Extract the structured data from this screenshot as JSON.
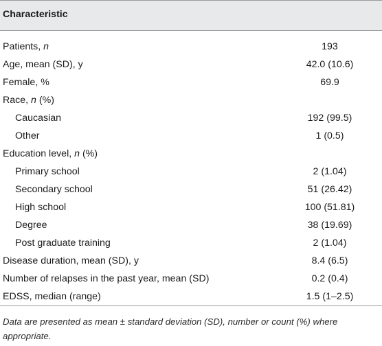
{
  "table": {
    "header": "Characteristic",
    "rows": [
      {
        "label_pre": "Patients, ",
        "label_em": "n",
        "label_post": "",
        "value": "193",
        "indent": false
      },
      {
        "label_pre": "Age, mean (SD), y",
        "label_em": "",
        "label_post": "",
        "value": "42.0 (10.6)",
        "indent": false
      },
      {
        "label_pre": "Female, %",
        "label_em": "",
        "label_post": "",
        "value": "69.9",
        "indent": false
      },
      {
        "label_pre": "Race, ",
        "label_em": "n",
        "label_post": " (%)",
        "value": "",
        "indent": false
      },
      {
        "label_pre": "Caucasian",
        "label_em": "",
        "label_post": "",
        "value": "192 (99.5)",
        "indent": true
      },
      {
        "label_pre": "Other",
        "label_em": "",
        "label_post": "",
        "value": "1 (0.5)",
        "indent": true
      },
      {
        "label_pre": "Education level, ",
        "label_em": "n",
        "label_post": " (%)",
        "value": "",
        "indent": false
      },
      {
        "label_pre": "Primary school",
        "label_em": "",
        "label_post": "",
        "value": "2 (1.04)",
        "indent": true
      },
      {
        "label_pre": "Secondary school",
        "label_em": "",
        "label_post": "",
        "value": "51 (26.42)",
        "indent": true
      },
      {
        "label_pre": "High school",
        "label_em": "",
        "label_post": "",
        "value": "100 (51.81)",
        "indent": true
      },
      {
        "label_pre": "Degree",
        "label_em": "",
        "label_post": "",
        "value": "38 (19.69)",
        "indent": true
      },
      {
        "label_pre": "Post graduate training",
        "label_em": "",
        "label_post": "",
        "value": "2 (1.04)",
        "indent": true
      },
      {
        "label_pre": "Disease duration, mean (SD), y",
        "label_em": "",
        "label_post": "",
        "value": "8.4 (6.5)",
        "indent": false
      },
      {
        "label_pre": "Number of relapses in the past year, mean (SD)",
        "label_em": "",
        "label_post": "",
        "value": "0.2 (0.4)",
        "indent": false
      },
      {
        "label_pre": "EDSS, median (range)",
        "label_em": "",
        "label_post": "",
        "value": "1.5 (1–2.5)",
        "indent": false
      }
    ]
  },
  "footnote": "Data are presented as mean ± standard deviation (SD), number or count (%) where appropriate."
}
